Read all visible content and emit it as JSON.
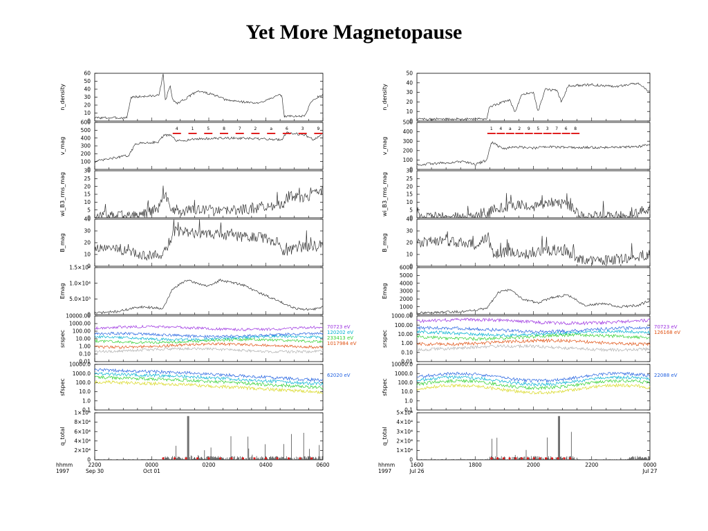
{
  "title": "Yet More Magnetopause",
  "colors": {
    "trace": "#333333",
    "interval_marker": "#e02020",
    "violet": "#9b30e0",
    "blue": "#2060e0",
    "cyan": "#00b0d0",
    "green": "#30d030",
    "orange": "#e05010",
    "yellow": "#d8d820",
    "gray": "#b0b0b0"
  },
  "chart_data": [
    {
      "type": "line",
      "event": "1997 Sep 30 - Oct 01",
      "time_axis": {
        "row1_label": "hhmm",
        "row2_label": "1997",
        "ticks": [
          {
            "hhmm": "2200",
            "date": "Sep 30"
          },
          {
            "hhmm": "0000",
            "date": "Oct 01"
          },
          {
            "hhmm": "0200",
            "date": ""
          },
          {
            "hhmm": "0400",
            "date": ""
          },
          {
            "hhmm": "0600",
            "date": ""
          }
        ]
      },
      "panels": [
        {
          "ylabel": "n_density",
          "ylim": [
            0,
            60
          ],
          "yticks": [
            "0",
            "10",
            "20",
            "30",
            "40",
            "50",
            "60"
          ],
          "profile": [
            [
              0,
              4
            ],
            [
              0.14,
              4
            ],
            [
              0.16,
              30
            ],
            [
              0.28,
              32
            ],
            [
              0.3,
              58
            ],
            [
              0.31,
              25
            ],
            [
              0.33,
              45
            ],
            [
              0.34,
              28
            ],
            [
              0.36,
              22
            ],
            [
              0.41,
              30
            ],
            [
              0.45,
              38
            ],
            [
              0.52,
              33
            ],
            [
              0.58,
              26
            ],
            [
              0.62,
              25
            ],
            [
              0.72,
              22
            ],
            [
              0.76,
              28
            ],
            [
              0.82,
              33
            ],
            [
              0.83,
              6
            ],
            [
              0.92,
              6
            ],
            [
              0.95,
              25
            ],
            [
              1,
              34
            ]
          ]
        },
        {
          "ylabel": "v_mag",
          "ylim": [
            0,
            600
          ],
          "yticks": [
            "0",
            "100",
            "200",
            "300",
            "400",
            "500",
            "600"
          ],
          "profile": [
            [
              0,
              100
            ],
            [
              0.15,
              180
            ],
            [
              0.18,
              330
            ],
            [
              0.28,
              350
            ],
            [
              0.3,
              430
            ],
            [
              0.33,
              440
            ],
            [
              0.36,
              360
            ],
            [
              0.45,
              390
            ],
            [
              0.6,
              400
            ],
            [
              0.82,
              380
            ],
            [
              0.84,
              470
            ],
            [
              0.92,
              440
            ],
            [
              0.96,
              380
            ],
            [
              1,
              460
            ]
          ],
          "interval_labels": [
            "4",
            "1",
            "5",
            "8",
            "7",
            "2",
            "a",
            "6",
            "3",
            "9"
          ]
        },
        {
          "ylabel": "wi_B3_rms_mag",
          "ylim": [
            0,
            30
          ],
          "yticks": [
            "0",
            "5",
            "10",
            "15",
            "20",
            "25",
            "30"
          ],
          "profile": [
            [
              0,
              1
            ],
            [
              0.18,
              1
            ],
            [
              0.22,
              3
            ],
            [
              0.28,
              6
            ],
            [
              0.3,
              14
            ],
            [
              0.35,
              4
            ],
            [
              0.44,
              5
            ],
            [
              0.55,
              4
            ],
            [
              0.7,
              6
            ],
            [
              0.82,
              8
            ],
            [
              0.86,
              14
            ],
            [
              0.92,
              12
            ],
            [
              1,
              18
            ]
          ]
        },
        {
          "ylabel": "B_mag",
          "ylim": [
            0,
            40
          ],
          "yticks": [
            "0",
            "10",
            "20",
            "30",
            "40"
          ],
          "profile": [
            [
              0,
              14
            ],
            [
              0.1,
              15
            ],
            [
              0.15,
              12
            ],
            [
              0.22,
              9
            ],
            [
              0.3,
              10
            ],
            [
              0.35,
              30
            ],
            [
              0.45,
              28
            ],
            [
              0.55,
              27
            ],
            [
              0.65,
              25
            ],
            [
              0.72,
              25
            ],
            [
              0.8,
              20
            ],
            [
              0.82,
              12
            ],
            [
              0.88,
              14
            ],
            [
              0.92,
              17
            ],
            [
              1,
              16
            ]
          ]
        },
        {
          "ylabel": "Emag",
          "ylim": [
            0,
            15000
          ],
          "yticklabels": [
            "0",
            "5.0×10³",
            "1.0×10⁴",
            "1.5×10⁴"
          ],
          "profile": [
            [
              0,
              500
            ],
            [
              0.1,
              1000
            ],
            [
              0.2,
              2500
            ],
            [
              0.3,
              2000
            ],
            [
              0.34,
              8000
            ],
            [
              0.4,
              11000
            ],
            [
              0.45,
              10000
            ],
            [
              0.5,
              9000
            ],
            [
              0.55,
              11000
            ],
            [
              0.65,
              9500
            ],
            [
              0.72,
              7000
            ],
            [
              0.8,
              4500
            ],
            [
              0.88,
              2000
            ],
            [
              0.95,
              1500
            ],
            [
              1,
              2500
            ]
          ]
        },
        {
          "ylabel": "srspec",
          "scale": "log",
          "ylim": [
            0.01,
            10000
          ],
          "yticks": [
            "0.01",
            "0.10",
            "1.00",
            "10.00",
            "100.00",
            "1000.00",
            "10000.00"
          ],
          "series_labels": [
            {
              "name": "70723 eV",
              "color": "#9b30e0"
            },
            {
              "name": "120202 eV",
              "color": "#00b0d0"
            },
            {
              "name": "233413 eV",
              "color": "#30d030"
            },
            {
              "name": "1017984 eV",
              "color": "#e05010"
            }
          ]
        },
        {
          "ylabel": "sfspec",
          "scale": "log",
          "ylim": [
            0.1,
            10000
          ],
          "yticks": [
            "0.1",
            "1.0",
            "10.0",
            "100.0",
            "1000.0",
            "10000.0"
          ],
          "series_labels": [
            {
              "name": "62020 eV",
              "color": "#2060e0"
            }
          ]
        },
        {
          "ylabel": "q_total",
          "ylim": [
            0,
            100000
          ],
          "yticklabels": [
            "0",
            "2×10⁴",
            "4×10⁴",
            "6×10⁴",
            "8×10⁴",
            "1×10⁵"
          ]
        }
      ]
    },
    {
      "type": "line",
      "event": "1997 Jul 26 - Jul 27",
      "time_axis": {
        "row1_label": "hhmm",
        "row2_label": "1997",
        "ticks": [
          {
            "hhmm": "1600",
            "date": "Jul 26"
          },
          {
            "hhmm": "1800",
            "date": ""
          },
          {
            "hhmm": "2000",
            "date": ""
          },
          {
            "hhmm": "2200",
            "date": ""
          },
          {
            "hhmm": "0000",
            "date": "Jul 27"
          }
        ]
      },
      "panels": [
        {
          "ylabel": "n_density",
          "ylim": [
            0,
            50
          ],
          "yticks": [
            "0",
            "10",
            "20",
            "30",
            "40",
            "50"
          ],
          "profile": [
            [
              0,
              2
            ],
            [
              0.3,
              2
            ],
            [
              0.31,
              15
            ],
            [
              0.4,
              22
            ],
            [
              0.42,
              8
            ],
            [
              0.45,
              28
            ],
            [
              0.5,
              30
            ],
            [
              0.52,
              10
            ],
            [
              0.55,
              33
            ],
            [
              0.6,
              32
            ],
            [
              0.62,
              20
            ],
            [
              0.65,
              37
            ],
            [
              0.75,
              38
            ],
            [
              0.85,
              36
            ],
            [
              0.95,
              40
            ],
            [
              1,
              30
            ]
          ]
        },
        {
          "ylabel": "v_mag",
          "ylim": [
            0,
            600
          ],
          "yticks": [
            "0",
            "100",
            "200",
            "300",
            "400",
            "500"
          ],
          "profile": [
            [
              0,
              60
            ],
            [
              0.2,
              100
            ],
            [
              0.25,
              60
            ],
            [
              0.3,
              120
            ],
            [
              0.32,
              350
            ],
            [
              0.37,
              260
            ],
            [
              0.42,
              290
            ],
            [
              0.5,
              270
            ],
            [
              0.55,
              290
            ],
            [
              0.65,
              280
            ],
            [
              0.8,
              280
            ],
            [
              0.95,
              290
            ],
            [
              1,
              320
            ]
          ],
          "interval_labels": [
            "1",
            "4",
            "a",
            "2",
            "9",
            "5",
            "3",
            "7",
            "6",
            "8"
          ]
        },
        {
          "ylabel": "wi_B3_rms_mag",
          "ylim": [
            0,
            30
          ],
          "yticks": [
            "0",
            "5",
            "10",
            "15",
            "20",
            "25",
            "30"
          ],
          "profile": [
            [
              0,
              0.5
            ],
            [
              0.3,
              0.5
            ],
            [
              0.32,
              6
            ],
            [
              0.45,
              8
            ],
            [
              0.52,
              7
            ],
            [
              0.58,
              10
            ],
            [
              0.65,
              8
            ],
            [
              0.7,
              1
            ],
            [
              0.9,
              1
            ],
            [
              0.95,
              3
            ],
            [
              1,
              6
            ]
          ]
        },
        {
          "ylabel": "B_mag",
          "ylim": [
            0,
            40
          ],
          "yticks": [
            "0",
            "10",
            "20",
            "30",
            "40"
          ],
          "profile": [
            [
              0,
              20
            ],
            [
              0.1,
              22
            ],
            [
              0.18,
              20
            ],
            [
              0.25,
              18
            ],
            [
              0.3,
              24
            ],
            [
              0.33,
              10
            ],
            [
              0.4,
              12
            ],
            [
              0.48,
              10
            ],
            [
              0.55,
              13
            ],
            [
              0.62,
              14
            ],
            [
              0.7,
              6
            ],
            [
              0.82,
              5
            ],
            [
              0.95,
              8
            ],
            [
              1,
              10
            ]
          ]
        },
        {
          "ylabel": "Emag",
          "ylim": [
            0,
            6000
          ],
          "yticks": [
            "0",
            "1000",
            "2000",
            "3000",
            "4000",
            "5000",
            "6000"
          ],
          "profile": [
            [
              0,
              200
            ],
            [
              0.2,
              400
            ],
            [
              0.3,
              800
            ],
            [
              0.35,
              2800
            ],
            [
              0.4,
              3200
            ],
            [
              0.45,
              2000
            ],
            [
              0.52,
              1500
            ],
            [
              0.58,
              2200
            ],
            [
              0.65,
              2500
            ],
            [
              0.72,
              1200
            ],
            [
              0.8,
              1400
            ],
            [
              0.88,
              1000
            ],
            [
              0.95,
              1200
            ],
            [
              1,
              1800
            ]
          ]
        },
        {
          "ylabel": "srspec",
          "scale": "log",
          "ylim": [
            0.01,
            1000
          ],
          "yticks": [
            "0.01",
            "0.10",
            "1.00",
            "10.00",
            "100.00",
            "1000.00"
          ],
          "series_labels": [
            {
              "name": "70723 eV",
              "color": "#9b30e0"
            },
            {
              "name": "126168 eV",
              "color": "#e05010"
            }
          ]
        },
        {
          "ylabel": "sfspec",
          "scale": "log",
          "ylim": [
            0.1,
            10000
          ],
          "yticks": [
            "0.1",
            "1.0",
            "10.0",
            "100.0",
            "1000.0",
            "10000.0"
          ],
          "series_labels": [
            {
              "name": "22088 eV",
              "color": "#2060e0"
            }
          ]
        },
        {
          "ylabel": "q_total",
          "ylim": [
            0,
            50000
          ],
          "yticklabels": [
            "0",
            "1×10⁴",
            "2×10⁴",
            "3×10⁴",
            "4×10⁴",
            "5×10⁴"
          ]
        }
      ]
    }
  ]
}
